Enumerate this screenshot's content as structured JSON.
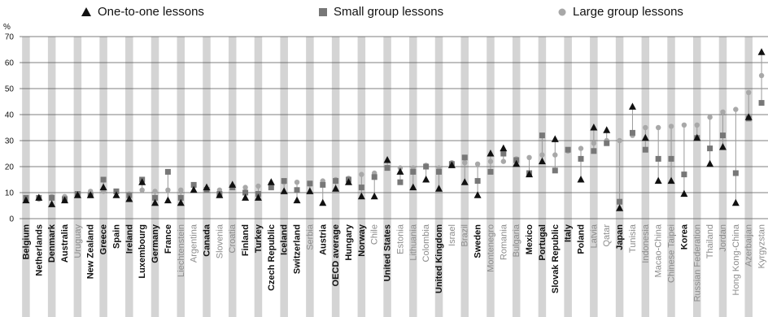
{
  "legend": {
    "one_to_one": "One-to-one lessons",
    "small_group": "Small group lessons",
    "large_group": "Large group lessons"
  },
  "colors": {
    "shade_band": "#d4d4d4",
    "dark": "#111111",
    "grey": "#8c8c8c",
    "light_grey": "#a8a8a8"
  },
  "chart_data": {
    "type": "scatter",
    "ylabel": "%",
    "ylim": [
      0,
      70
    ],
    "yticks": [
      0,
      10,
      20,
      30,
      40,
      50,
      60,
      70
    ],
    "grid": true,
    "legend_position": "top",
    "categories": [
      "Belgium",
      "Netherlands",
      "Denmark",
      "Australia",
      "Uruguay",
      "New Zealand",
      "Greece",
      "Spain",
      "Ireland",
      "Luxembourg",
      "Germany",
      "France",
      "Liechtenstein",
      "Argentina",
      "Canada",
      "Slovenia",
      "Croatia",
      "Finland",
      "Turkey",
      "Czech Republic",
      "Iceland",
      "Switzerland",
      "Serbia",
      "Austria",
      "OECD average",
      "Hungary",
      "Norway",
      "Chile",
      "United States",
      "Estonia",
      "Lithuania",
      "Colombia",
      "United Kingdom",
      "Israel",
      "Brazil",
      "Sweden",
      "Montenegro",
      "Romania",
      "Bulgaria",
      "Mexico",
      "Portugal",
      "Slovak Republic",
      "Italy",
      "Poland",
      "Latvia",
      "Qatar",
      "Japan",
      "Tunisia",
      "Indonesia",
      "Macao-China",
      "Chinese Taipei",
      "Korea",
      "Russian Federation",
      "Thailand",
      "Jordan",
      "Hong Kong-China",
      "Azerbaijan",
      "Kyrgyzstan"
    ],
    "label_style": [
      "bold",
      "bold",
      "bold",
      "bold",
      "grey",
      "bold",
      "bold",
      "bold",
      "bold",
      "bold",
      "bold",
      "bold",
      "grey",
      "grey",
      "bold",
      "grey",
      "grey",
      "bold",
      "bold",
      "bold",
      "bold",
      "bold",
      "grey",
      "bold",
      "bold",
      "bold",
      "bold",
      "grey",
      "bold",
      "grey",
      "grey",
      "grey",
      "bold",
      "grey",
      "grey",
      "bold",
      "grey",
      "grey",
      "grey",
      "bold",
      "bold",
      "bold",
      "bold",
      "bold",
      "grey",
      "grey",
      "bold",
      "grey",
      "grey",
      "grey",
      "grey",
      "bold",
      "grey",
      "grey",
      "grey",
      "grey",
      "grey",
      "grey"
    ],
    "series": [
      {
        "name": "One-to-one lessons",
        "marker": "triangle",
        "values": [
          7,
          8,
          5.5,
          7,
          9,
          9,
          12,
          9,
          7.5,
          14,
          6,
          7,
          6,
          11,
          12,
          9,
          13,
          8,
          8,
          14,
          10.5,
          7,
          10.5,
          6,
          11.5,
          14,
          8.5,
          8.5,
          22.5,
          18,
          12,
          15,
          11.5,
          20.5,
          14,
          9,
          25,
          27,
          21,
          17,
          22,
          30.5,
          null,
          15,
          35,
          34,
          4,
          43,
          31,
          14.5,
          14.5,
          9.5,
          31,
          21,
          27.5,
          6,
          39,
          64
        ]
      },
      {
        "name": "Small group lessons",
        "marker": "square",
        "values": [
          8,
          8,
          8,
          7.5,
          9.5,
          9,
          15,
          10.5,
          9,
          15,
          8,
          18,
          8,
          13,
          11,
          9.5,
          12,
          10,
          9.5,
          12,
          14.5,
          11,
          13.5,
          13,
          14.5,
          15,
          12,
          16,
          19.5,
          14,
          18,
          20,
          18,
          21,
          23.5,
          14.5,
          18,
          25,
          22.5,
          17.5,
          32,
          18.5,
          26.5,
          23,
          26,
          29,
          6.5,
          33,
          26.5,
          23,
          23,
          17,
          31,
          27,
          32,
          17.5,
          38.5,
          44.5
        ]
      },
      {
        "name": "Large group lessons",
        "marker": "circle",
        "values": [
          7.5,
          7.5,
          8.5,
          8.5,
          9,
          10.5,
          10.5,
          10,
          9.5,
          11,
          10.5,
          11,
          11,
          12.5,
          11,
          11,
          12.5,
          12,
          12.5,
          12,
          14,
          14,
          13.5,
          14.5,
          15,
          15.5,
          17,
          17.5,
          19.5,
          19.5,
          19.5,
          20.5,
          19.5,
          21.5,
          21.5,
          21,
          22,
          22,
          23,
          23.5,
          24.5,
          24.5,
          26,
          27,
          29,
          30,
          30,
          32,
          35,
          35,
          35.5,
          36,
          36,
          39,
          41,
          42,
          48.5,
          55
        ]
      }
    ]
  }
}
